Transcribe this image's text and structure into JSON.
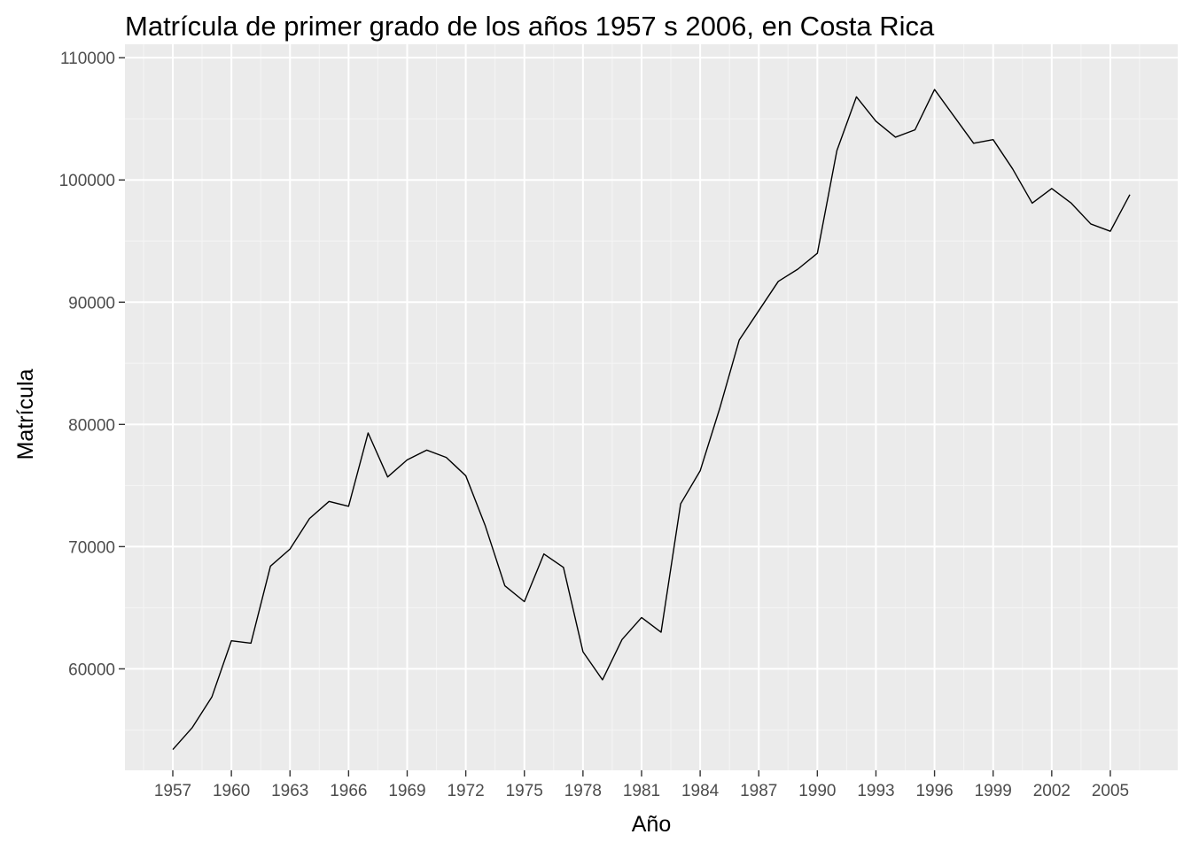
{
  "chart_data": {
    "type": "line",
    "title": "Matrícula de primer grado de los años 1957 s 2006, en Costa Rica",
    "xlabel": "Año",
    "ylabel": "Matrícula",
    "x": [
      1957,
      1958,
      1959,
      1960,
      1961,
      1962,
      1963,
      1964,
      1965,
      1966,
      1967,
      1968,
      1969,
      1970,
      1971,
      1972,
      1973,
      1974,
      1975,
      1976,
      1977,
      1978,
      1979,
      1980,
      1981,
      1982,
      1983,
      1984,
      1985,
      1986,
      1987,
      1988,
      1989,
      1990,
      1991,
      1992,
      1993,
      1994,
      1995,
      1996,
      1997,
      1998,
      1999,
      2000,
      2001,
      2002,
      2003,
      2004,
      2005,
      2006
    ],
    "series": [
      {
        "values": [
          53400,
          55200,
          57700,
          62300,
          62100,
          68400,
          69800,
          72300,
          73700,
          73300,
          79300,
          75700,
          77100,
          77900,
          77300,
          75800,
          71700,
          66800,
          65500,
          69400,
          68300,
          61400,
          59100,
          62400,
          64200,
          63000,
          73500,
          76200,
          81300,
          86900,
          89300,
          91700,
          92700,
          94000,
          102400,
          106800,
          104800,
          103500,
          104100,
          107400,
          105200,
          103000,
          103300,
          100900,
          98100,
          99300,
          98100,
          96400,
          95800,
          98800
        ]
      }
    ],
    "x_ticks": [
      {
        "value": 1957,
        "label": "1957"
      },
      {
        "value": 1960,
        "label": "1960"
      },
      {
        "value": 1963,
        "label": "1963"
      },
      {
        "value": 1966,
        "label": "1966"
      },
      {
        "value": 1969,
        "label": "1969"
      },
      {
        "value": 1972,
        "label": "1972"
      },
      {
        "value": 1975,
        "label": "1975"
      },
      {
        "value": 1978,
        "label": "1978"
      },
      {
        "value": 1981,
        "label": "1981"
      },
      {
        "value": 1984,
        "label": "1984"
      },
      {
        "value": 1987,
        "label": "1987"
      },
      {
        "value": 1990,
        "label": "1990"
      },
      {
        "value": 1993,
        "label": "1993"
      },
      {
        "value": 1996,
        "label": "1996"
      },
      {
        "value": 1999,
        "label": "1999"
      },
      {
        "value": 2002,
        "label": "2002"
      },
      {
        "value": 2005,
        "label": "2005"
      }
    ],
    "y_ticks": [
      {
        "value": 60000,
        "label": "60000"
      },
      {
        "value": 70000,
        "label": "70000"
      },
      {
        "value": 80000,
        "label": "80000"
      },
      {
        "value": 90000,
        "label": "90000"
      },
      {
        "value": 100000,
        "label": "100000"
      },
      {
        "value": 110000,
        "label": "110000"
      }
    ],
    "xlim": [
      1954.55,
      2008.45
    ],
    "ylim": [
      51700,
      111100
    ],
    "grid": true,
    "legend": "none",
    "colors": {
      "panel_background": "#ebebeb",
      "grid_major": "#ffffff",
      "grid_minor": "#f5f5f5",
      "line": "#000000",
      "tick_label": "#4d4d4d",
      "tick_mark": "#333333"
    }
  }
}
